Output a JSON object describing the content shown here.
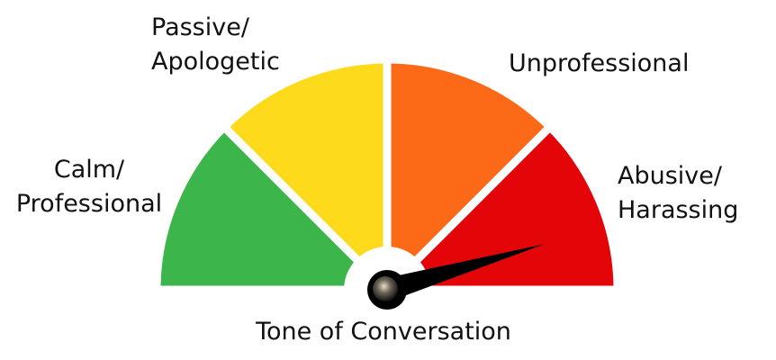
{
  "gauge": {
    "segments": [
      {
        "label_line1": "Calm/",
        "label_line2": "Professional",
        "color": "#3cb54a"
      },
      {
        "label_line1": "Passive/",
        "label_line2": "Apologetic",
        "color": "#fddb1c"
      },
      {
        "label_line1": "Unprofessional",
        "label_line2": "",
        "color": "#fd6a17"
      },
      {
        "label_line1": "Abusive/",
        "label_line2": "Harassing",
        "color": "#e30508"
      }
    ],
    "needle_value": 0.91,
    "needle_color": "#000000",
    "caption": "Tone of Conversation"
  }
}
